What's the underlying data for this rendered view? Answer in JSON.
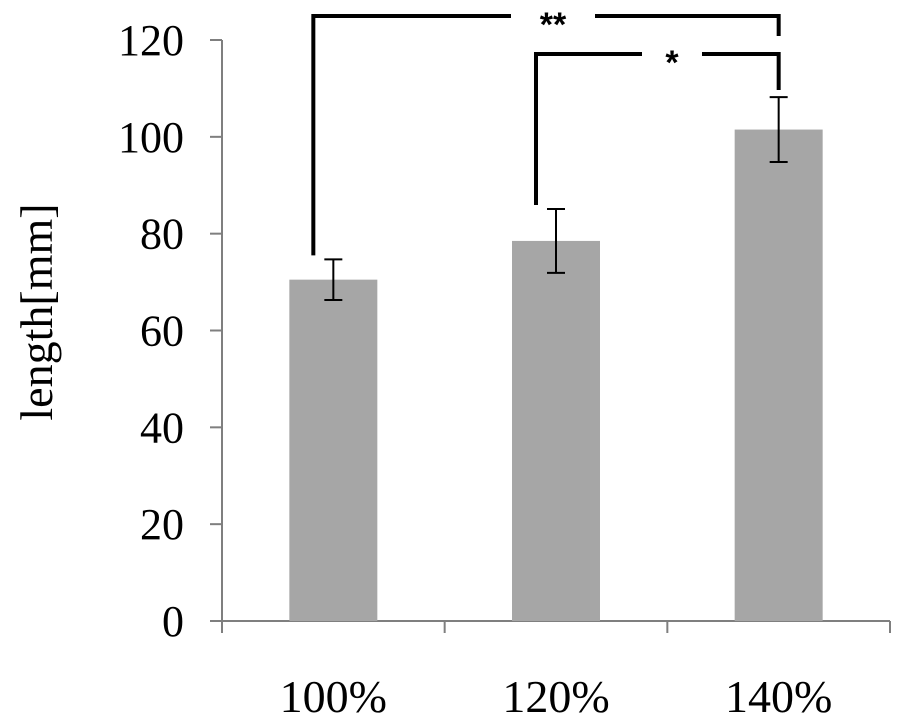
{
  "chart_data": {
    "type": "bar",
    "categories": [
      "100%",
      "120%",
      "140%"
    ],
    "values": [
      70.5,
      78.5,
      101.5
    ],
    "errors": [
      4.2,
      6.6,
      6.7
    ],
    "ylabel": "length[mm]",
    "xlabel": "",
    "ylim": [
      0,
      120
    ],
    "yticks": [
      0,
      20,
      40,
      60,
      80,
      100,
      120
    ],
    "grid": false,
    "bar_color": "#a6a6a6",
    "significance": [
      {
        "from": 0,
        "to": 2,
        "label": "**"
      },
      {
        "from": 1,
        "to": 2,
        "label": "*"
      }
    ]
  }
}
